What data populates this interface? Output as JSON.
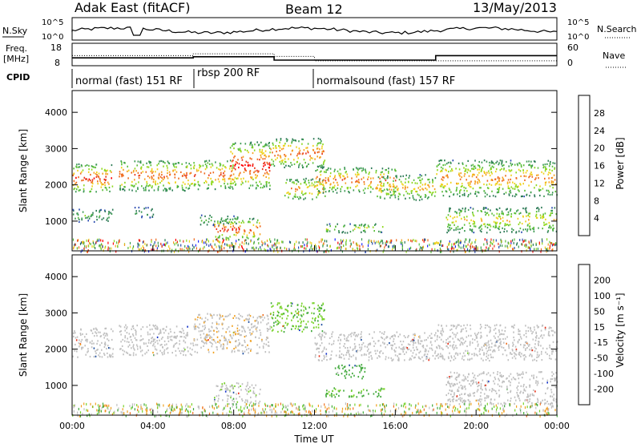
{
  "header": {
    "station": "Adak East (fitACF)",
    "beam": "Beam 12",
    "date": "13/May/2013"
  },
  "noise_panel": {
    "left_label": "N.Sky",
    "right_label": "N.Search",
    "tick_high": "10^5",
    "tick_low": "10^0"
  },
  "freq_panel": {
    "left_label_1": "Freq.",
    "left_label_2": "[MHz]",
    "right_label": "Nave",
    "left_ticks": [
      "18",
      "8"
    ],
    "right_ticks": [
      "60",
      "0"
    ]
  },
  "cpid": {
    "label": "CPID",
    "segments": [
      {
        "name": "normal (fast) 151 RF",
        "start_h": 0,
        "end_h": 6
      },
      {
        "name": "rbsp 200 RF",
        "start_h": 6,
        "end_h": 12
      },
      {
        "name": "normalsound (fast) 157 RF",
        "start_h": 12,
        "end_h": 24
      }
    ]
  },
  "power_panel": {
    "ylabel": "Slant Range [km]",
    "colorbar_label": "Power [dB]",
    "colorbar_ticks": [
      "4",
      "8",
      "12",
      "16",
      "20",
      "24",
      "28"
    ],
    "colorbar_colors": [
      "#1e28ff",
      "#2a4bb0",
      "#2c7a55",
      "#3c9a52",
      "#5bbf3a",
      "#8fd81e",
      "#f0d21c",
      "#f5a020",
      "#ef6a1e",
      "#e8331a",
      "#ff0000"
    ]
  },
  "velocity_panel": {
    "ylabel": "Slant Range [km]",
    "colorbar_label": "Velocity [m s⁻¹]",
    "colorbar_ticks": [
      "200",
      "100",
      "50",
      "15",
      "-15",
      "-50",
      "-100",
      "-200"
    ],
    "colorbar_colors": [
      "#1030c8",
      "#2050a0",
      "#1e6e3a",
      "#3fa83a",
      "#78d22a",
      "#c0c0c0",
      "#c0c0c0",
      "#f0a020",
      "#f07020",
      "#e83018",
      "#ff0000"
    ]
  },
  "chart_data": {
    "type": "heatmap",
    "title": "Adak East (fitACF)  Beam 12  13/May/2013",
    "xlabel": "Time UT",
    "ylabel": "Slant Range [km]",
    "x_ticks": [
      "00:00",
      "04:00",
      "08:00",
      "12:00",
      "16:00",
      "20:00",
      "00:00"
    ],
    "y_ticks": [
      "1000",
      "2000",
      "3000",
      "4000"
    ],
    "xlim_hours": [
      0,
      24
    ],
    "ylim_km": [
      180,
      4600
    ],
    "frequency_mhz": [
      {
        "start_h": 0,
        "end_h": 6,
        "value": 11.5
      },
      {
        "start_h": 6,
        "end_h": 10,
        "value": 12.0
      },
      {
        "start_h": 10,
        "end_h": 18,
        "value": 10.5
      },
      {
        "start_h": 18,
        "end_h": 24,
        "value": 12.5
      }
    ],
    "nave": [
      {
        "start_h": 0,
        "end_h": 6,
        "value": 27
      },
      {
        "start_h": 6,
        "end_h": 10,
        "value": 32
      },
      {
        "start_h": 10,
        "end_h": 12,
        "value": 25
      },
      {
        "start_h": 12,
        "end_h": 24,
        "value": 13
      }
    ],
    "power_bands": [
      {
        "t0": 0.0,
        "t1": 2.0,
        "r0": 1800,
        "r1": 2600,
        "peak": 28
      },
      {
        "t0": 0.0,
        "t1": 2.0,
        "r0": 1000,
        "r1": 1350,
        "peak": 12
      },
      {
        "t0": 2.3,
        "t1": 6.0,
        "r0": 1850,
        "r1": 2700,
        "peak": 26
      },
      {
        "t0": 3.0,
        "t1": 4.0,
        "r0": 1100,
        "r1": 1400,
        "peak": 10
      },
      {
        "t0": 6.0,
        "t1": 8.0,
        "r0": 1900,
        "r1": 2700,
        "peak": 26
      },
      {
        "t0": 6.3,
        "t1": 8.2,
        "r0": 900,
        "r1": 1200,
        "peak": 12
      },
      {
        "t0": 7.0,
        "t1": 9.3,
        "r0": 500,
        "r1": 1100,
        "peak": 28
      },
      {
        "t0": 7.8,
        "t1": 9.8,
        "r0": 1900,
        "r1": 3200,
        "peak": 30
      },
      {
        "t0": 9.8,
        "t1": 12.5,
        "r0": 2500,
        "r1": 3300,
        "peak": 26
      },
      {
        "t0": 10.5,
        "t1": 12.5,
        "r0": 1600,
        "r1": 2200,
        "peak": 24
      },
      {
        "t0": 12.0,
        "t1": 16.0,
        "r0": 1800,
        "r1": 2500,
        "peak": 26
      },
      {
        "t0": 12.5,
        "t1": 15.5,
        "r0": 700,
        "r1": 950,
        "peak": 18
      },
      {
        "t0": 15.0,
        "t1": 18.0,
        "r0": 1600,
        "r1": 2300,
        "peak": 22
      },
      {
        "t0": 18.0,
        "t1": 24.0,
        "r0": 1700,
        "r1": 2700,
        "peak": 24
      },
      {
        "t0": 18.5,
        "t1": 24.0,
        "r0": 700,
        "r1": 1400,
        "peak": 20
      }
    ],
    "velocity_bands": [
      {
        "t0": 0.0,
        "t1": 2.0,
        "r0": 1800,
        "r1": 2600,
        "v": 0
      },
      {
        "t0": 2.3,
        "t1": 6.0,
        "r0": 1850,
        "r1": 2700,
        "v": 0
      },
      {
        "t0": 6.0,
        "t1": 9.8,
        "r0": 1900,
        "r1": 3000,
        "v": -5
      },
      {
        "t0": 7.0,
        "t1": 9.3,
        "r0": 500,
        "r1": 1100,
        "v": 5
      },
      {
        "t0": 9.8,
        "t1": 12.5,
        "r0": 2500,
        "r1": 3300,
        "v": 30
      },
      {
        "t0": 12.0,
        "t1": 18.0,
        "r0": 1700,
        "r1": 2500,
        "v": 0
      },
      {
        "t0": 12.5,
        "t1": 15.5,
        "r0": 700,
        "r1": 950,
        "v": 40
      },
      {
        "t0": 13.0,
        "t1": 14.5,
        "r0": 1200,
        "r1": 1600,
        "v": 60
      },
      {
        "t0": 18.0,
        "t1": 24.0,
        "r0": 1700,
        "r1": 2700,
        "v": 0
      },
      {
        "t0": 18.5,
        "t1": 24.0,
        "r0": 500,
        "r1": 1400,
        "v": 0
      }
    ]
  }
}
